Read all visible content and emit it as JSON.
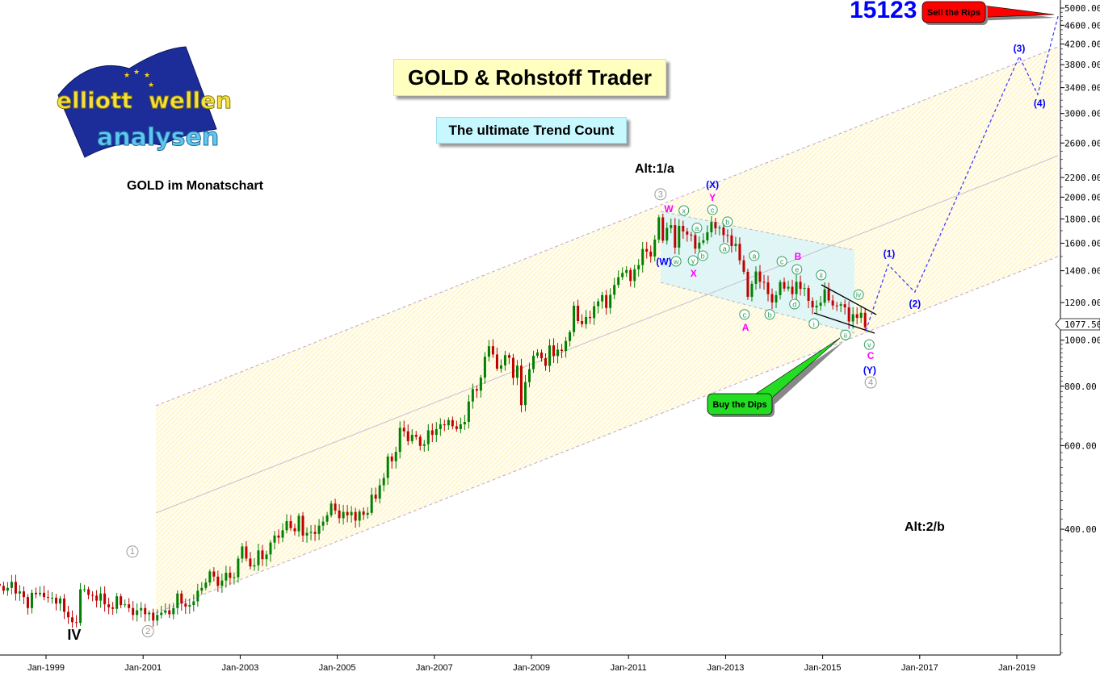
{
  "header": {
    "title": "GOLD & Rohstoff Trader",
    "subtitle": "The ultimate Trend Count",
    "code": "15123",
    "chart_caption": "GOLD im Monatschart",
    "logo_text": "elliott wellen analysen",
    "alt1": "Alt:1/a",
    "alt2": "Alt:2/b",
    "sell_label": "Sell the Rips",
    "buy_label": "Buy the Dips"
  },
  "colors": {
    "up_candle": "#008000",
    "down_candle": "#c00000",
    "wave_blue": "#0000ff",
    "wave_magenta": "#ff00ff",
    "wave_green": "#2e9e5e",
    "wave_gray": "#999999",
    "sell_box": "#ff0000",
    "buy_box": "#22dd22",
    "channel_fill": "#fffbe0",
    "correction_box": "#d8f4fa"
  },
  "chart_data": {
    "type": "candlestick",
    "interval": "monthly",
    "y_scale": "log",
    "ylim": [
      200,
      5000
    ],
    "xlim": [
      "1998",
      "2020"
    ],
    "grid": false,
    "start": "Jan-1998",
    "monthly_close": [
      304,
      297,
      301,
      310,
      293,
      296,
      288,
      273,
      294,
      292,
      294,
      288,
      287,
      287,
      279,
      286,
      268,
      261,
      255,
      254,
      299,
      299,
      291,
      290,
      283,
      293,
      278,
      274,
      272,
      289,
      277,
      278,
      273,
      264,
      270,
      273,
      265,
      267,
      257,
      264,
      267,
      270,
      265,
      273,
      293,
      279,
      275,
      277,
      282,
      297,
      301,
      309,
      326,
      318,
      304,
      312,
      324,
      316,
      317,
      347,
      368,
      347,
      334,
      336,
      361,
      346,
      354,
      375,
      388,
      384,
      398,
      416,
      402,
      396,
      427,
      388,
      393,
      395,
      391,
      407,
      415,
      428,
      453,
      438,
      422,
      435,
      428,
      435,
      417,
      436,
      429,
      433,
      473,
      464,
      495,
      513,
      569,
      556,
      582,
      654,
      643,
      613,
      632,
      626,
      599,
      604,
      646,
      632,
      650,
      665,
      662,
      679,
      659,
      650,
      665,
      673,
      743,
      789,
      783,
      834,
      923,
      971,
      933,
      871,
      885,
      930,
      918,
      833,
      884,
      730,
      816,
      869,
      927,
      942,
      916,
      883,
      975,
      926,
      955,
      949,
      996,
      1040,
      1182,
      1097,
      1081,
      1119,
      1113,
      1179,
      1207,
      1244,
      1169,
      1246,
      1307,
      1357,
      1386,
      1405,
      1332,
      1410,
      1439,
      1556,
      1536,
      1500,
      1628,
      1813,
      1620,
      1722,
      1746,
      1566,
      1740,
      1694,
      1668,
      1664,
      1558,
      1604,
      1622,
      1687,
      1772,
      1719,
      1726,
      1664,
      1662,
      1578,
      1595,
      1472,
      1393,
      1234,
      1314,
      1395,
      1327,
      1323,
      1250,
      1201,
      1244,
      1326,
      1284,
      1296,
      1250,
      1327,
      1282,
      1287,
      1210,
      1172,
      1182,
      1199,
      1279,
      1212,
      1183,
      1182,
      1190,
      1172,
      1095,
      1134,
      1114,
      1142,
      1064
    ],
    "last_price": "1077.50",
    "y_ticks": [
      "5000.00",
      "4600.00",
      "4200.00",
      "3800.00",
      "3400.00",
      "3000.00",
      "2600.00",
      "2200.00",
      "2000.00",
      "1800.00",
      "1600.00",
      "1400.00",
      "1200.00",
      "1000.00",
      "800.00",
      "600.00",
      "400.00"
    ],
    "x_ticks": [
      "Jan-1999",
      "Jan-2001",
      "Jan-2003",
      "Jan-2005",
      "Jan-2007",
      "Jan-2009",
      "Jan-2011",
      "Jan-2013",
      "Jan-2015",
      "Jan-2017",
      "Jan-2019"
    ],
    "projection": [
      {
        "date": 2015.89,
        "price": 1047
      },
      {
        "date": 2016.35,
        "price": 1442
      },
      {
        "date": 2016.9,
        "price": 1262
      },
      {
        "date": 2019.05,
        "price": 3955
      },
      {
        "date": 2019.43,
        "price": 3290
      },
      {
        "date": 2019.85,
        "price": 4808
      }
    ],
    "annotations": [
      {
        "text": "1",
        "style": "circle-gray",
        "date": 2000.78,
        "price": 359
      },
      {
        "text": "2",
        "style": "circle-gray",
        "date": 2001.1,
        "price": 244
      },
      {
        "text": "IV",
        "style": "black-large",
        "date": 1999.58,
        "price": 239
      },
      {
        "text": "3",
        "style": "circle-gray",
        "date": 2011.66,
        "price": 2028
      },
      {
        "text": "W",
        "style": "magenta",
        "date": 2011.83,
        "price": 1898
      },
      {
        "text": "(W)",
        "style": "blue",
        "date": 2011.73,
        "price": 1468
      },
      {
        "text": "w",
        "style": "circle-green",
        "date": 2011.98,
        "price": 1465
      },
      {
        "text": "x",
        "style": "circle-green",
        "date": 2012.14,
        "price": 1874
      },
      {
        "text": "y",
        "style": "circle-green",
        "date": 2012.33,
        "price": 1471
      },
      {
        "text": "X",
        "style": "magenta",
        "date": 2012.34,
        "price": 1387
      },
      {
        "text": "a",
        "style": "circle-green",
        "date": 2012.41,
        "price": 1722
      },
      {
        "text": "b",
        "style": "circle-green",
        "date": 2012.53,
        "price": 1506
      },
      {
        "text": "(X)",
        "style": "blue",
        "date": 2012.73,
        "price": 2133
      },
      {
        "text": "Y",
        "style": "magenta",
        "date": 2012.73,
        "price": 2003
      },
      {
        "text": "c",
        "style": "circle-green",
        "date": 2012.73,
        "price": 1882
      },
      {
        "text": "a",
        "style": "circle-green",
        "date": 2012.98,
        "price": 1560
      },
      {
        "text": "b",
        "style": "circle-green",
        "date": 2013.04,
        "price": 1775
      },
      {
        "text": "c",
        "style": "circle-green",
        "date": 2013.39,
        "price": 1133
      },
      {
        "text": "A",
        "style": "magenta",
        "date": 2013.41,
        "price": 1067
      },
      {
        "text": "a",
        "style": "circle-green",
        "date": 2013.59,
        "price": 1506
      },
      {
        "text": "b",
        "style": "circle-green",
        "date": 2013.91,
        "price": 1133
      },
      {
        "text": "c",
        "style": "circle-green",
        "date": 2014.16,
        "price": 1465
      },
      {
        "text": "d",
        "style": "circle-green",
        "date": 2014.42,
        "price": 1191
      },
      {
        "text": "e",
        "style": "circle-green",
        "date": 2014.47,
        "price": 1409
      },
      {
        "text": "B",
        "style": "magenta",
        "date": 2014.49,
        "price": 1506
      },
      {
        "text": "i",
        "style": "circle-green",
        "date": 2014.82,
        "price": 1083
      },
      {
        "text": "ii",
        "style": "circle-green",
        "date": 2014.97,
        "price": 1371
      },
      {
        "text": "iii",
        "style": "circle-green",
        "date": 2015.47,
        "price": 1026
      },
      {
        "text": "iv",
        "style": "circle-green",
        "date": 2015.74,
        "price": 1247
      },
      {
        "text": "v",
        "style": "circle-green",
        "date": 2015.96,
        "price": 979
      },
      {
        "text": "C",
        "style": "magenta",
        "date": 2015.99,
        "price": 931
      },
      {
        "text": "(Y)",
        "style": "blue",
        "date": 2015.97,
        "price": 867
      },
      {
        "text": "4",
        "style": "circle-gray",
        "date": 2015.99,
        "price": 815
      },
      {
        "text": "(1)",
        "style": "blue",
        "date": 2016.37,
        "price": 1525
      },
      {
        "text": "(2)",
        "style": "blue",
        "date": 2016.9,
        "price": 1197
      },
      {
        "text": "(3)",
        "style": "blue",
        "date": 2019.05,
        "price": 4130
      },
      {
        "text": "(4)",
        "style": "blue",
        "date": 2019.47,
        "price": 3164
      }
    ]
  }
}
